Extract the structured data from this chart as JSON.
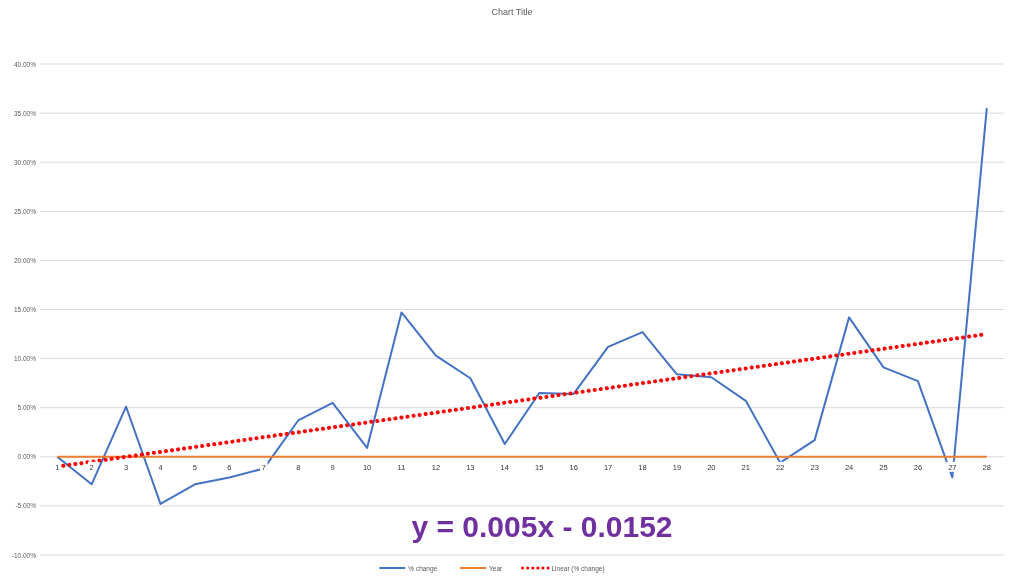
{
  "chart_data": {
    "type": "line",
    "title": "Chart Title",
    "x": [
      1,
      2,
      3,
      4,
      5,
      6,
      7,
      8,
      9,
      10,
      11,
      12,
      13,
      14,
      15,
      16,
      17,
      18,
      19,
      20,
      21,
      22,
      23,
      24,
      25,
      26,
      27,
      28
    ],
    "xlim": [
      0.5,
      28.5
    ],
    "xticks": [
      1,
      2,
      3,
      4,
      5,
      6,
      7,
      8,
      9,
      10,
      11,
      12,
      13,
      14,
      15,
      16,
      17,
      18,
      19,
      20,
      21,
      22,
      23,
      24,
      25,
      26,
      27,
      28
    ],
    "ylim": [
      -10,
      40
    ],
    "yticks": [
      {
        "value": -10,
        "label": "-10.00%"
      },
      {
        "value": -5,
        "label": "-5.00%"
      },
      {
        "value": 0,
        "label": "0.00%"
      },
      {
        "value": 5,
        "label": "5.00%"
      },
      {
        "value": 10,
        "label": "10.00%"
      },
      {
        "value": 15,
        "label": "15.00%"
      },
      {
        "value": 20,
        "label": "20.00%"
      },
      {
        "value": 25,
        "label": "25.00%"
      },
      {
        "value": 30,
        "label": "30.00%"
      },
      {
        "value": 35,
        "label": "35.00%"
      },
      {
        "value": 40,
        "label": "40.00%"
      }
    ],
    "grid": "y",
    "legend": "bottom",
    "series": [
      {
        "name": "% change",
        "color": "#4472c4",
        "values": [
          0,
          -2.8,
          5.1,
          -4.8,
          -2.8,
          -2.1,
          -1.2,
          3.7,
          5.5,
          0.9,
          14.7,
          10.3,
          8.0,
          1.3,
          6.5,
          6.4,
          11.2,
          12.7,
          8.4,
          8.1,
          5.7,
          -0.6,
          1.7,
          14.2,
          9.1,
          7.7,
          -2.1,
          35.5
        ]
      },
      {
        "name": "Year",
        "color": "#ed7d31",
        "values": [
          0,
          0,
          0,
          0,
          0,
          0,
          0,
          0,
          0,
          0,
          0,
          0,
          0,
          0,
          0,
          0,
          0,
          0,
          0,
          0,
          0,
          0,
          0,
          0,
          0,
          0,
          0,
          0
        ]
      },
      {
        "name": "Linear (% change)",
        "color": "#ff0000",
        "type": "line",
        "line_style": "dotted",
        "x": [
          1,
          28
        ],
        "values": [
          -1.0,
          12.5
        ]
      }
    ],
    "annotations": [
      "y = 0.005x - 0.0152"
    ]
  }
}
